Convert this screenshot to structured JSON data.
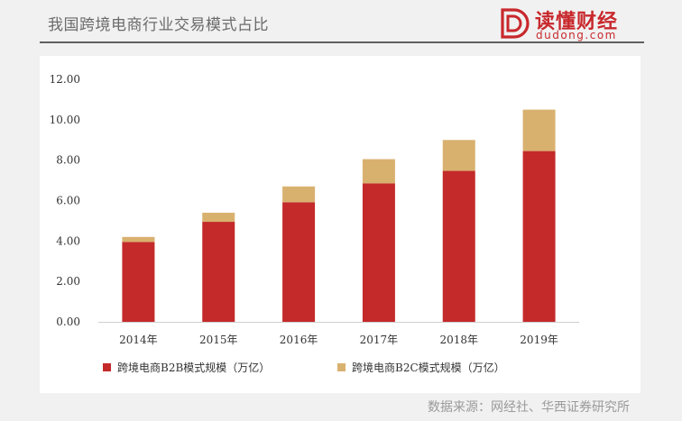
{
  "header": {
    "title": "我国跨境电商行业交易模式占比",
    "logo_text": "读懂财经",
    "logo_sub": "dudong.com",
    "logo_letter": "D"
  },
  "chart_data": {
    "type": "bar",
    "stacked": true,
    "categories": [
      "2014年",
      "2015年",
      "2016年",
      "2017年",
      "2018年",
      "2019年"
    ],
    "series": [
      {
        "name": "跨境电商B2B模式规模（万亿）",
        "values": [
          3.95,
          4.95,
          5.92,
          6.85,
          7.47,
          8.45
        ],
        "color": "#c42a2a"
      },
      {
        "name": "跨境电商B2C模式规模（万亿）",
        "values": [
          0.25,
          0.45,
          0.78,
          1.2,
          1.53,
          2.05
        ],
        "color": "#d9b16f"
      }
    ],
    "ylim": [
      0,
      12
    ],
    "yticks": [
      "0.00",
      "2.00",
      "4.00",
      "6.00",
      "8.00",
      "10.00",
      "12.00"
    ],
    "ytick_values": [
      0,
      2,
      4,
      6,
      8,
      10,
      12
    ],
    "grid": false,
    "legend": "bottom-left"
  },
  "footer": {
    "source": "数据来源：网经社、华西证券研究所"
  }
}
